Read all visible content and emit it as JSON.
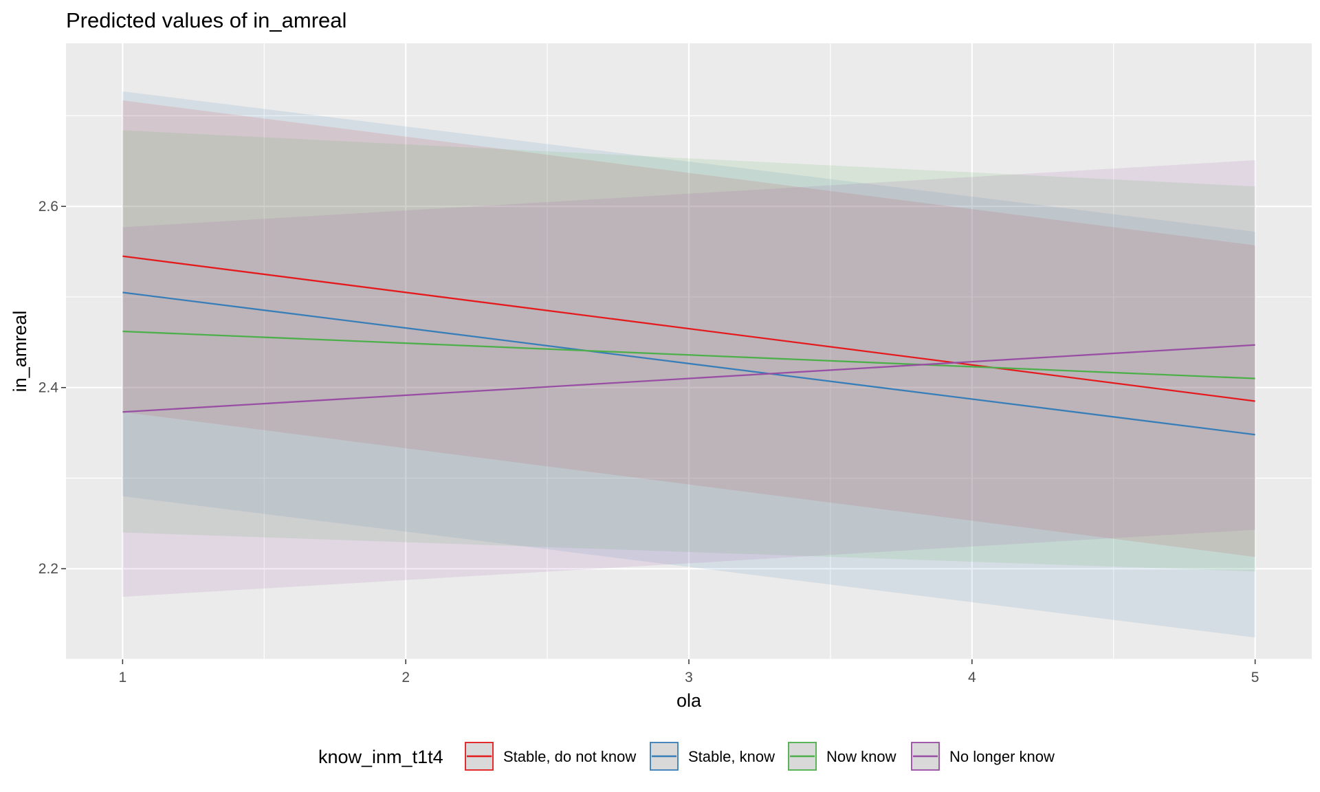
{
  "chart_data": {
    "type": "line",
    "title": "Predicted values of in_amreal",
    "xlabel": "ola",
    "ylabel": "in_amreal",
    "xlim": [
      0.8,
      5.2
    ],
    "ylim": [
      2.1,
      2.78
    ],
    "x_ticks": [
      1,
      2,
      3,
      4,
      5
    ],
    "x_tick_labels": [
      "1",
      "2",
      "3",
      "4",
      "5"
    ],
    "y_ticks": [
      2.2,
      2.4,
      2.6
    ],
    "y_tick_labels": [
      "2.2",
      "2.4",
      "2.6"
    ],
    "grid": true,
    "legend_position": "bottom",
    "legend_title": "know_inm_t1t4",
    "series": [
      {
        "name": "Stable, do not know",
        "color": "#e41a1c",
        "x": [
          1,
          5
        ],
        "y": [
          2.545,
          2.385
        ],
        "lower": [
          2.373,
          2.213
        ],
        "upper": [
          2.717,
          2.557
        ]
      },
      {
        "name": "Stable, know",
        "color": "#377eb8",
        "x": [
          1,
          5
        ],
        "y": [
          2.505,
          2.348
        ],
        "lower": [
          2.28,
          2.124
        ],
        "upper": [
          2.727,
          2.572
        ]
      },
      {
        "name": "Now know",
        "color": "#4daf4a",
        "x": [
          1,
          5
        ],
        "y": [
          2.462,
          2.41
        ],
        "lower": [
          2.24,
          2.197
        ],
        "upper": [
          2.684,
          2.622
        ]
      },
      {
        "name": "No longer know",
        "color": "#984ea3",
        "x": [
          1,
          5
        ],
        "y": [
          2.373,
          2.447
        ],
        "lower": [
          2.169,
          2.243
        ],
        "upper": [
          2.577,
          2.651
        ]
      }
    ]
  }
}
